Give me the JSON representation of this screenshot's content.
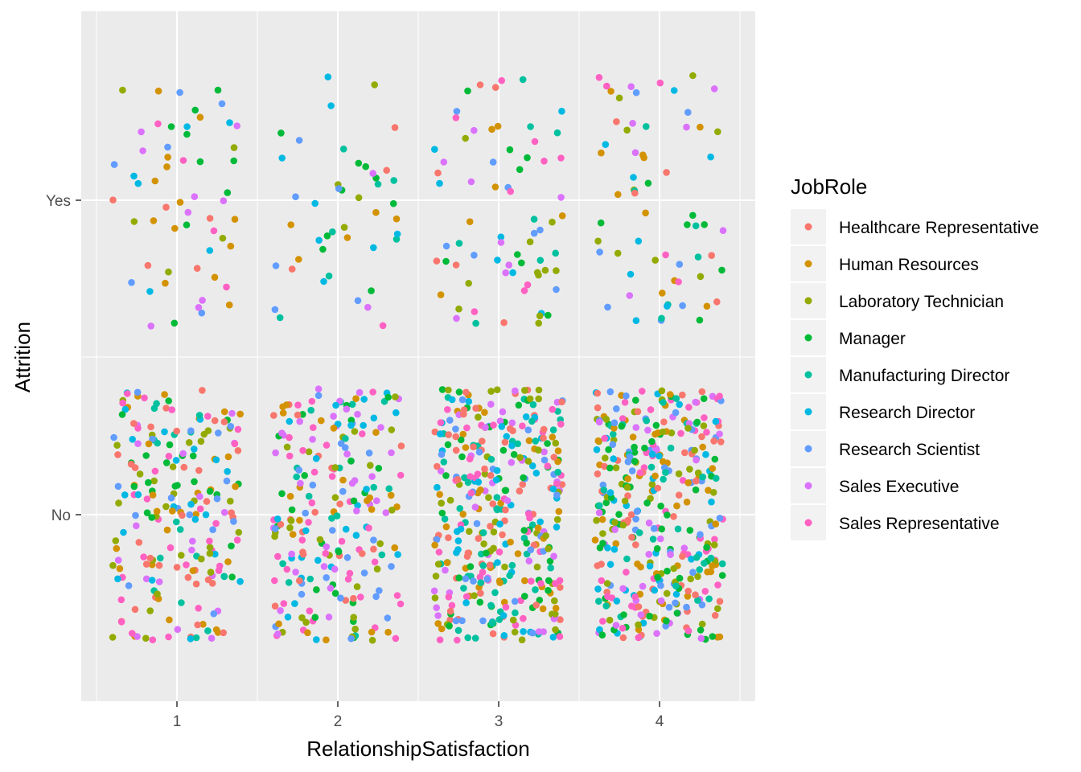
{
  "chart_data": {
    "type": "scatter",
    "jitter": true,
    "xlabel": "RelationshipSatisfaction",
    "ylabel": "Attrition",
    "x_categories": [
      "1",
      "2",
      "3",
      "4"
    ],
    "y_categories": [
      "No",
      "Yes"
    ],
    "grid": true,
    "legend": {
      "title": "JobRole",
      "placement": "right",
      "entries": [
        {
          "name": "Healthcare Representative",
          "color": "#F8766D"
        },
        {
          "name": "Human Resources",
          "color": "#D39200"
        },
        {
          "name": "Laboratory Technician",
          "color": "#93AA00"
        },
        {
          "name": "Manager",
          "color": "#00BA38"
        },
        {
          "name": "Manufacturing Director",
          "color": "#00C19F"
        },
        {
          "name": "Research Director",
          "color": "#00B9E3"
        },
        {
          "name": "Research Scientist",
          "color": "#619CFF"
        },
        {
          "name": "Sales Executive",
          "color": "#DB72FB"
        },
        {
          "name": "Sales Representative",
          "color": "#FF61C3"
        }
      ]
    },
    "counts": {
      "No": {
        "1": 219,
        "2": 234,
        "3": 389,
        "4": 391
      },
      "Yes": {
        "1": 57,
        "2": 45,
        "3": 71,
        "4": 64
      }
    },
    "jitter_width": 0.4,
    "jitter_height": 0.4
  }
}
